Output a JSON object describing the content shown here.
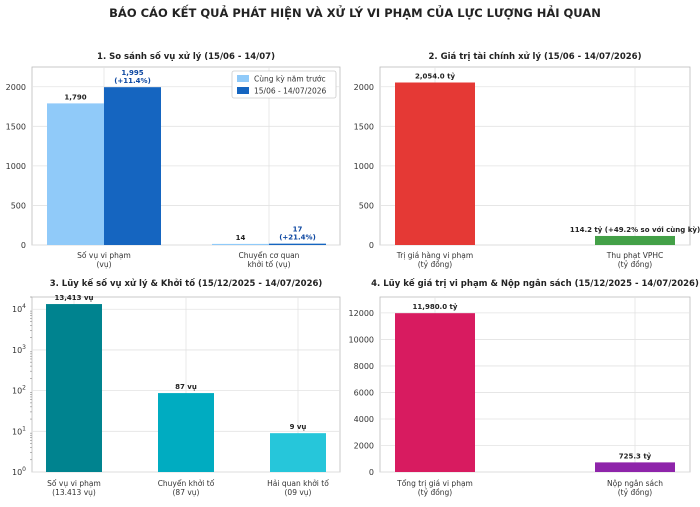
{
  "title": "BÁO CÁO KẾT QUẢ PHÁT HIỆN VÀ XỬ LÝ VI PHẠM CỦA LỰC LƯỢNG HẢI QUAN",
  "colors": {
    "light_blue": "#90CAF9",
    "dark_blue": "#1565C0",
    "red": "#E53935",
    "green": "#43A047",
    "teal_dark": "#00838F",
    "teal_mid": "#00ACC1",
    "teal_light": "#26C6DA",
    "crimson": "#D81B60",
    "purple": "#8E24AA",
    "label_blue": "#0D47A1"
  },
  "chart_data": [
    {
      "type": "bar",
      "title": "1. So sánh số vụ xử lý (15/06 - 14/07)",
      "categories": [
        [
          "Số vụ vi phạm",
          "(vụ)"
        ],
        [
          "Chuyển cơ quan",
          "khởi tố (vụ)"
        ]
      ],
      "series": [
        {
          "name": "Cùng kỳ năm trước",
          "values": [
            1790,
            14
          ],
          "labels": [
            [
              "1,790"
            ],
            [
              "14"
            ]
          ]
        },
        {
          "name": "15/06 - 14/07/2026",
          "values": [
            1995,
            17
          ],
          "labels": [
            [
              "1,995",
              "(+11.4%)"
            ],
            [
              "17",
              "(+21.4%)"
            ]
          ]
        }
      ],
      "ylim": [
        0,
        2250
      ],
      "yticks": [
        0,
        500,
        1000,
        1500,
        2000
      ],
      "ytick_labels": [
        "0",
        "500",
        "1000",
        "1500",
        "2000"
      ],
      "grid": true,
      "legend": "top-right"
    },
    {
      "type": "bar",
      "title": "2. Giá trị tài chính xử lý (15/06 - 14/07/2026)",
      "categories": [
        [
          "Trị giá hàng vi phạm",
          "(tỷ đồng)"
        ],
        [
          "Thu phạt VPHC",
          "(tỷ đồng)"
        ]
      ],
      "series": [
        {
          "values": [
            2054.0,
            114.2
          ],
          "labels": [
            [
              "2,054.0 tỷ"
            ],
            [
              "114.2 tỷ (+49.2% so với cùng kỳ)"
            ]
          ]
        }
      ],
      "ylim": [
        0,
        2250
      ],
      "yticks": [
        0,
        500,
        1000,
        1500,
        2000
      ],
      "ytick_labels": [
        "0",
        "500",
        "1000",
        "1500",
        "2000"
      ],
      "grid": true
    },
    {
      "type": "bar",
      "title": "3. Lũy kế số vụ xử lý & Khởi tố (15/12/2025 - 14/07/2026)",
      "categories": [
        [
          "Số vụ vi phạm",
          "(13.413 vụ)"
        ],
        [
          "Chuyển khởi tố",
          "(87 vụ)"
        ],
        [
          "Hải quan khởi tố",
          "(09 vụ)"
        ]
      ],
      "series": [
        {
          "values": [
            13413,
            87,
            9
          ],
          "labels": [
            [
              "13,413 vụ"
            ],
            [
              "87 vụ"
            ],
            [
              "9 vụ"
            ]
          ]
        }
      ],
      "yscale": "log",
      "ylim": [
        1,
        20000
      ],
      "yticks": [
        1,
        10,
        100,
        1000,
        10000
      ],
      "ytick_labels": [
        "10^0",
        "10^1",
        "10^2",
        "10^3",
        "10^4"
      ],
      "grid": true
    },
    {
      "type": "bar",
      "title": "4. Lũy kế giá trị vi phạm & Nộp ngân sách (15/12/2025 - 14/07/2026)",
      "categories": [
        [
          "Tổng trị giá vi phạm",
          "(tỷ đồng)"
        ],
        [
          "Nộp ngân sách",
          "(tỷ đồng)"
        ]
      ],
      "series": [
        {
          "values": [
            11980.0,
            725.3
          ],
          "labels": [
            [
              "11,980.0 tỷ"
            ],
            [
              "725.3 tỷ"
            ]
          ]
        }
      ],
      "ylim": [
        0,
        13200
      ],
      "yticks": [
        0,
        2000,
        4000,
        6000,
        8000,
        10000,
        12000
      ],
      "ytick_labels": [
        "0",
        "2000",
        "4000",
        "6000",
        "8000",
        "10000",
        "12000"
      ],
      "grid": true
    }
  ]
}
